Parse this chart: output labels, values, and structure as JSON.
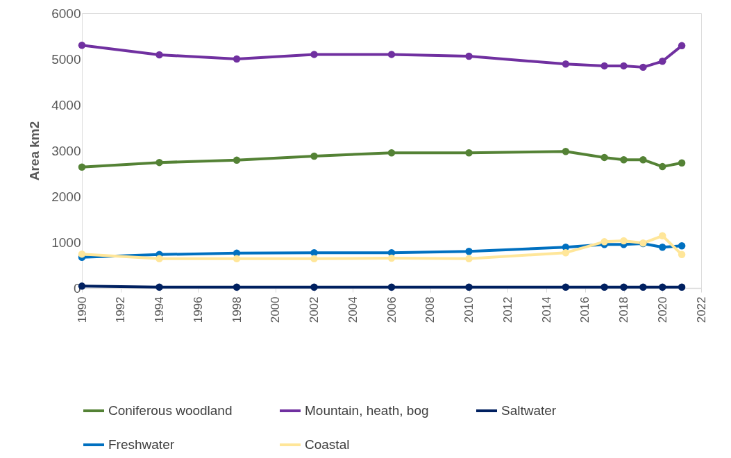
{
  "chart_data": {
    "type": "line",
    "ylabel": "Area km2",
    "x": [
      1990,
      1994,
      1998,
      2002,
      2006,
      2010,
      2015,
      2017,
      2018,
      2019,
      2020,
      2021
    ],
    "xlim": [
      1990,
      2022
    ],
    "xticks": [
      1990,
      1992,
      1994,
      1996,
      1998,
      2000,
      2002,
      2004,
      2006,
      2008,
      2010,
      2012,
      2014,
      2016,
      2018,
      2020,
      2022
    ],
    "ylim": [
      0,
      6000
    ],
    "yticks": [
      0,
      1000,
      2000,
      3000,
      4000,
      5000,
      6000
    ],
    "grid": false,
    "legend": "bottom",
    "marker": "circle",
    "line_style": "solid",
    "series": [
      {
        "name": "Coniferous woodland",
        "color": "#548235",
        "values": [
          2640,
          2740,
          2790,
          2880,
          2950,
          2950,
          2980,
          2850,
          2800,
          2800,
          2650,
          2730
        ]
      },
      {
        "name": "Mountain, heath, bog",
        "color": "#7030a0",
        "values": [
          5300,
          5090,
          5000,
          5100,
          5100,
          5060,
          4890,
          4850,
          4850,
          4820,
          4950,
          5290
        ]
      },
      {
        "name": "Saltwater",
        "color": "#002060",
        "values": [
          40,
          20,
          20,
          20,
          20,
          20,
          20,
          20,
          20,
          20,
          20,
          20
        ]
      },
      {
        "name": "Freshwater",
        "color": "#0070c0",
        "values": [
          670,
          730,
          760,
          770,
          770,
          800,
          890,
          950,
          950,
          970,
          890,
          920
        ]
      },
      {
        "name": "Coastal",
        "color": "#ffe699",
        "values": [
          740,
          640,
          640,
          640,
          650,
          640,
          770,
          1010,
          1030,
          980,
          1140,
          730
        ]
      }
    ]
  }
}
